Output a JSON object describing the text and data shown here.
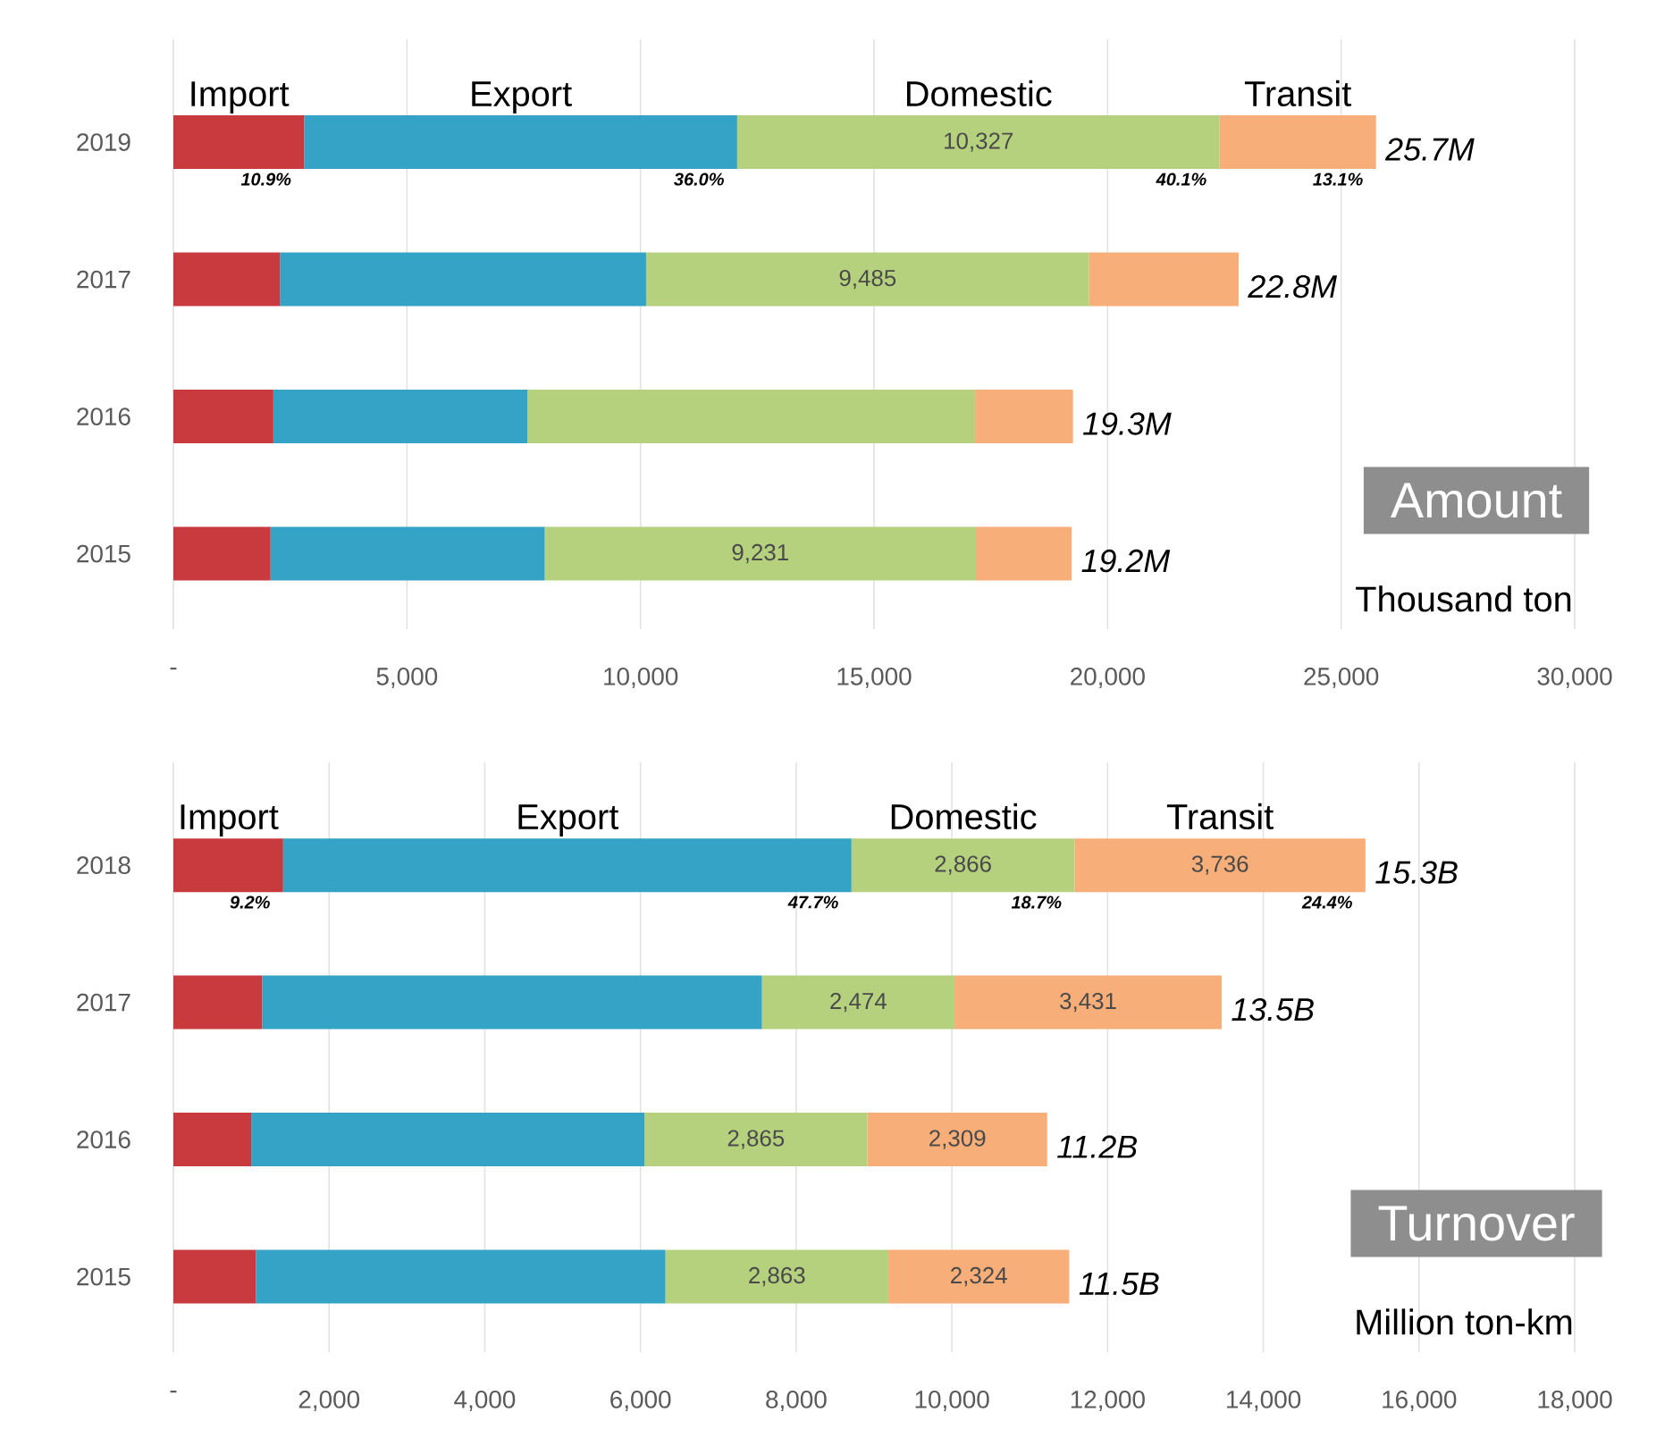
{
  "chart_data": [
    {
      "type": "bar",
      "orientation": "horizontal",
      "stacked": true,
      "title": "Amount",
      "xlabel": "Thousand ton",
      "categories": [
        "2019",
        "2017",
        "2016",
        "2015"
      ],
      "series": [
        {
          "name": "Import",
          "color": "#c93a3e",
          "values": [
            2800,
            2280,
            2140,
            2080
          ]
        },
        {
          "name": "Export",
          "color": "#34a3c6",
          "values": [
            9270,
            7840,
            5440,
            5870
          ]
        },
        {
          "name": "Domestic",
          "color": "#b6d17e",
          "values": [
            10327,
            9485,
            9580,
            9231
          ],
          "value_labels": [
            "10,327",
            "9,485",
            null,
            "9,231"
          ]
        },
        {
          "name": "Transit",
          "color": "#f7ae78",
          "values": [
            3350,
            3200,
            2100,
            2050
          ]
        }
      ],
      "totals": [
        "25.7M",
        "22.8M",
        "19.3M",
        "19.2M"
      ],
      "annotations": [
        "10.9%",
        "36.0%",
        "40.1%",
        "13.1%"
      ],
      "xlim": [
        0,
        30000
      ],
      "xticks": [
        {
          "value": 0,
          "label": "-"
        },
        {
          "value": 5000,
          "label": "5,000"
        },
        {
          "value": 10000,
          "label": "10,000"
        },
        {
          "value": 15000,
          "label": "15,000"
        },
        {
          "value": 20000,
          "label": "20,000"
        },
        {
          "value": 25000,
          "label": "25,000"
        },
        {
          "value": 30000,
          "label": "30,000"
        }
      ],
      "grid": "x"
    },
    {
      "type": "bar",
      "orientation": "horizontal",
      "stacked": true,
      "title": "Turnover",
      "xlabel": "Million ton-km",
      "categories": [
        "2018",
        "2017",
        "2016",
        "2015"
      ],
      "series": [
        {
          "name": "Import",
          "color": "#c93a3e",
          "values": [
            1410,
            1140,
            1000,
            1060
          ]
        },
        {
          "name": "Export",
          "color": "#34a3c6",
          "values": [
            7300,
            6420,
            5050,
            5260
          ]
        },
        {
          "name": "Domestic",
          "color": "#b6d17e",
          "values": [
            2866,
            2474,
            2865,
            2863
          ],
          "value_labels": [
            "2,866",
            "2,474",
            "2,865",
            "2,863"
          ]
        },
        {
          "name": "Transit",
          "color": "#f7ae78",
          "values": [
            3736,
            3431,
            2309,
            2324
          ],
          "value_labels": [
            "3,736",
            "3,431",
            "2,309",
            "2,324"
          ]
        }
      ],
      "totals": [
        "15.3B",
        "13.5B",
        "11.2B",
        "11.5B"
      ],
      "annotations": [
        "9.2%",
        "47.7%",
        "18.7%",
        "24.4%"
      ],
      "xlim": [
        0,
        18000
      ],
      "xticks": [
        {
          "value": 0,
          "label": "-"
        },
        {
          "value": 2000,
          "label": "2,000"
        },
        {
          "value": 4000,
          "label": "4,000"
        },
        {
          "value": 6000,
          "label": "6,000"
        },
        {
          "value": 8000,
          "label": "8,000"
        },
        {
          "value": 10000,
          "label": "10,000"
        },
        {
          "value": 12000,
          "label": "12,000"
        },
        {
          "value": 14000,
          "label": "14,000"
        },
        {
          "value": 16000,
          "label": "16,000"
        },
        {
          "value": 18000,
          "label": "18,000"
        }
      ],
      "grid": "x"
    }
  ]
}
